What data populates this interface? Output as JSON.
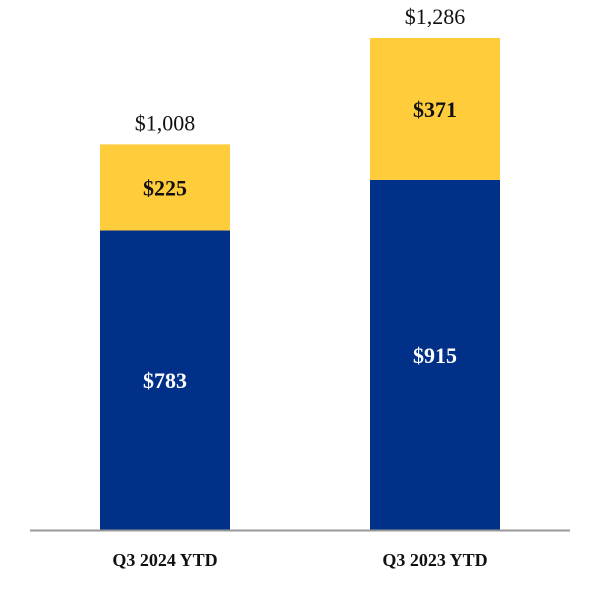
{
  "chart_data": {
    "type": "bar",
    "stacked": true,
    "categories": [
      "Q3 2024 YTD",
      "Q3 2023 YTD"
    ],
    "series": [
      {
        "values": [
          783,
          915
        ],
        "labels": [
          "$783",
          "$915"
        ],
        "color": "#003087",
        "label_color": "#ffffff"
      },
      {
        "values": [
          225,
          371
        ],
        "labels": [
          "$225",
          "$371"
        ],
        "color": "#FFCD3C",
        "label_color": "#111111"
      }
    ],
    "totals": [
      1008,
      1286
    ],
    "total_labels": [
      "$1,008",
      "$1,286"
    ],
    "ylim": [
      0,
      1286
    ],
    "axis_color": "#999999",
    "grid": false,
    "legend": false
  }
}
